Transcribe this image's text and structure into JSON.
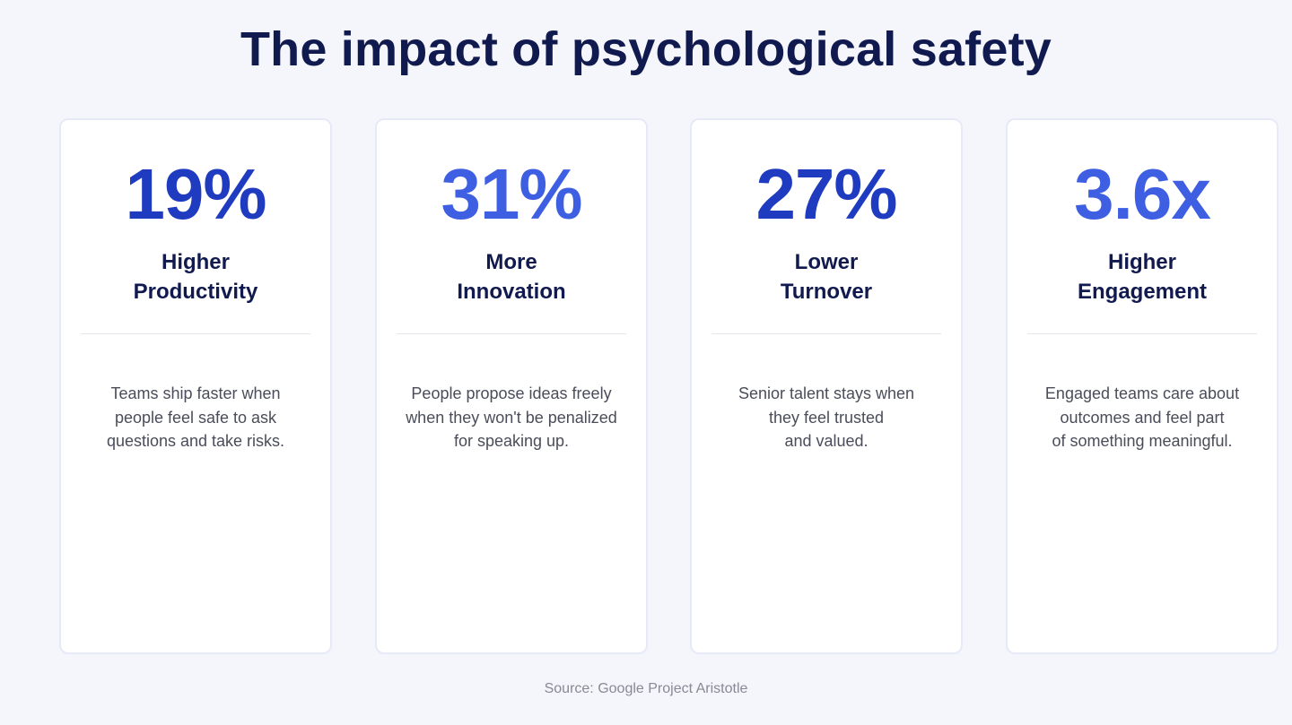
{
  "title": "The impact of psychological safety",
  "cards": [
    {
      "stat": "19%",
      "stat_color": "#1f3bbf",
      "label_lines": [
        "Higher",
        "Productivity"
      ],
      "desc_lines": [
        "Teams ship faster when",
        "people feel safe to ask",
        "questions and take risks."
      ]
    },
    {
      "stat": "31%",
      "stat_color": "#3f5fe3",
      "label_lines": [
        "More",
        "Innovation"
      ],
      "desc_lines": [
        "People propose ideas freely",
        "when they won't be penalized",
        "for speaking up."
      ]
    },
    {
      "stat": "27%",
      "stat_color": "#1f3bbf",
      "label_lines": [
        "Lower",
        "Turnover"
      ],
      "desc_lines": [
        "Senior talent stays when",
        "they feel trusted",
        "and valued."
      ]
    },
    {
      "stat": "3.6x",
      "stat_color": "#3f5fe3",
      "label_lines": [
        "Higher",
        "Engagement"
      ],
      "desc_lines": [
        "Engaged teams care about",
        "outcomes and feel part",
        "of something meaningful."
      ]
    }
  ],
  "source": "Source: Google Project Aristotle"
}
